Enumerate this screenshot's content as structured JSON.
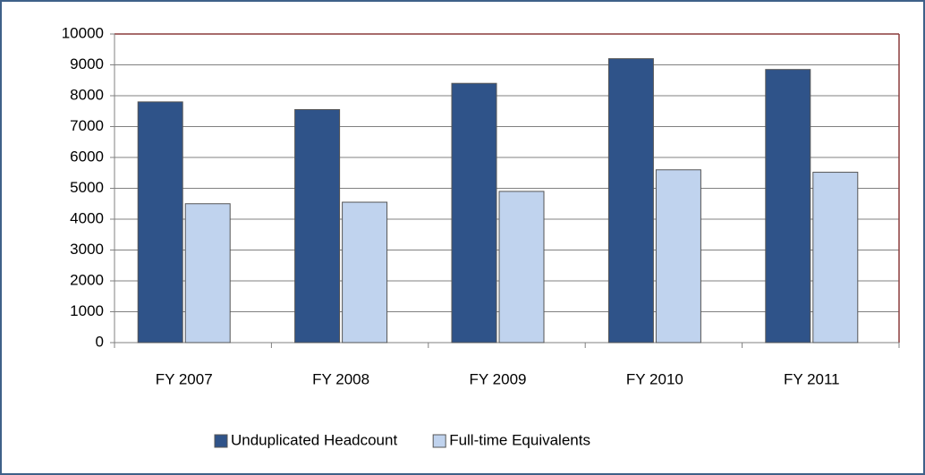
{
  "chart_data": {
    "type": "bar",
    "categories": [
      "FY 2007",
      "FY 2008",
      "FY 2009",
      "FY 2010",
      "FY 2011"
    ],
    "series": [
      {
        "name": "Unduplicated Headcount",
        "color": "#2f5389",
        "values": [
          7800,
          7550,
          8400,
          9200,
          8850
        ]
      },
      {
        "name": "Full-time Equivalents",
        "color": "#c0d3ee",
        "values": [
          4500,
          4550,
          4900,
          5600,
          5520
        ]
      }
    ],
    "ylim": [
      0,
      10000
    ],
    "yticks": [
      0,
      1000,
      2000,
      3000,
      4000,
      5000,
      6000,
      7000,
      8000,
      9000,
      10000
    ],
    "grid": true,
    "legend": "bottom"
  }
}
